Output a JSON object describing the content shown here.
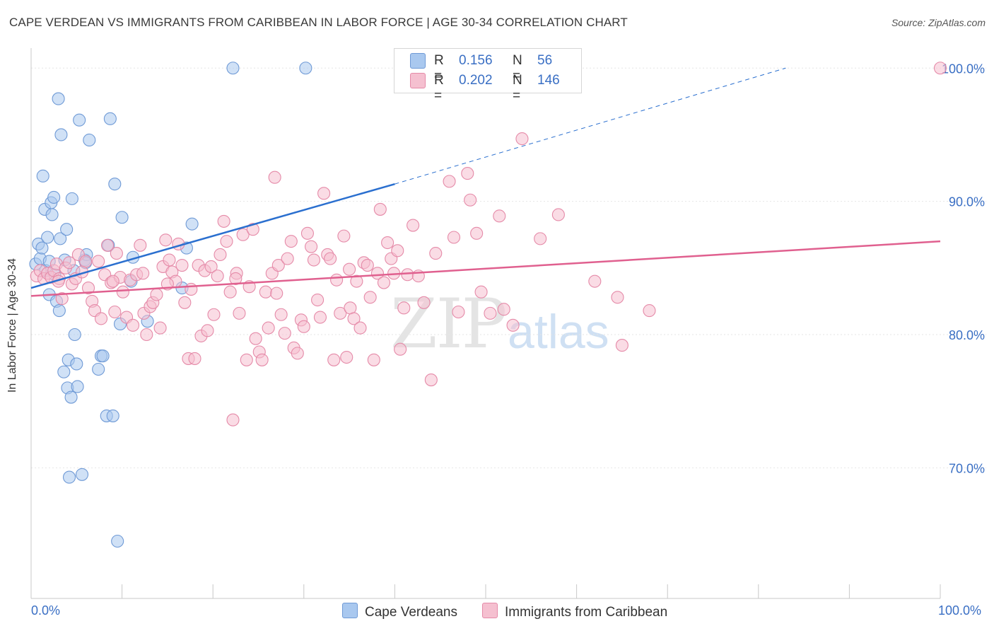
{
  "title": "CAPE VERDEAN VS IMMIGRANTS FROM CARIBBEAN IN LABOR FORCE | AGE 30-34 CORRELATION CHART",
  "source": "Source: ZipAtlas.com",
  "watermark": {
    "zip": "ZIP",
    "atlas": "atlas"
  },
  "legend": {
    "r_label": "R =",
    "n_label": "N =",
    "series": [
      {
        "name": "Cape Verdeans",
        "r": "0.156",
        "n": "56",
        "color": "#a9c8ef",
        "stroke": "#6f9ad6",
        "line": "#2a6fcf"
      },
      {
        "name": "Immigrants from Caribbean",
        "r": "0.202",
        "n": "146",
        "color": "#f5c0d0",
        "stroke": "#e58aa8",
        "line": "#e0608f"
      }
    ]
  },
  "chart_data": {
    "type": "scatter",
    "title": "CAPE VERDEAN VS IMMIGRANTS FROM CARIBBEAN IN LABOR FORCE | AGE 30-34 CORRELATION CHART",
    "xlabel": "",
    "ylabel": "In Labor Force | Age 30-34",
    "xlim": [
      0,
      100
    ],
    "ylim": [
      60.2,
      101.5
    ],
    "x_tick_labels": [
      "0.0%",
      "100.0%"
    ],
    "y_ticks": [
      70,
      80,
      90,
      100
    ],
    "y_tick_labels": [
      "70.0%",
      "80.0%",
      "90.0%",
      "100.0%"
    ],
    "grid": true,
    "series": [
      {
        "name": "Cape Verdeans",
        "trend": {
          "x0": 0,
          "y0": 83.5,
          "x1": 40,
          "y1": 91.3,
          "dash_x1": 83,
          "dash_y1": 100
        },
        "points": [
          [
            0.5,
            85.3
          ],
          [
            0.8,
            86.8
          ],
          [
            1.0,
            85.7
          ],
          [
            1.2,
            86.5
          ],
          [
            1.5,
            89.4
          ],
          [
            1.3,
            91.9
          ],
          [
            1.6,
            84.8
          ],
          [
            1.8,
            87.3
          ],
          [
            2.0,
            83.0
          ],
          [
            2.2,
            89.9
          ],
          [
            2.3,
            89.0
          ],
          [
            2.0,
            85.5
          ],
          [
            2.6,
            84.5
          ],
          [
            2.5,
            90.3
          ],
          [
            2.8,
            82.5
          ],
          [
            3.1,
            81.8
          ],
          [
            3.2,
            87.2
          ],
          [
            3.3,
            95.0
          ],
          [
            3.0,
            97.7
          ],
          [
            3.6,
            77.2
          ],
          [
            3.7,
            85.6
          ],
          [
            3.9,
            87.9
          ],
          [
            4.0,
            76.0
          ],
          [
            4.2,
            69.3
          ],
          [
            4.1,
            78.1
          ],
          [
            4.4,
            75.3
          ],
          [
            4.5,
            90.2
          ],
          [
            4.8,
            80.0
          ],
          [
            5.0,
            77.8
          ],
          [
            5.1,
            76.1
          ],
          [
            5.3,
            96.1
          ],
          [
            5.6,
            69.5
          ],
          [
            5.9,
            85.6
          ],
          [
            6.1,
            86.0
          ],
          [
            6.4,
            94.6
          ],
          [
            7.4,
            77.4
          ],
          [
            7.7,
            78.4
          ],
          [
            7.9,
            78.4
          ],
          [
            8.3,
            73.9
          ],
          [
            8.5,
            86.7
          ],
          [
            8.7,
            96.2
          ],
          [
            9.0,
            73.9
          ],
          [
            9.2,
            91.3
          ],
          [
            9.5,
            64.5
          ],
          [
            9.8,
            80.8
          ],
          [
            10.0,
            88.8
          ],
          [
            11.0,
            84.0
          ],
          [
            11.2,
            85.8
          ],
          [
            12.8,
            81.0
          ],
          [
            16.6,
            83.5
          ],
          [
            17.1,
            86.5
          ],
          [
            17.7,
            88.3
          ],
          [
            22.2,
            100.0
          ],
          [
            30.2,
            100.0
          ],
          [
            4.7,
            84.8
          ],
          [
            6.0,
            85.4
          ]
        ]
      },
      {
        "name": "Immigrants from Caribbean",
        "trend": {
          "x0": 0,
          "y0": 82.9,
          "x1": 100,
          "y1": 87.0
        },
        "points": [
          [
            0.6,
            84.4
          ],
          [
            1.0,
            84.8
          ],
          [
            1.4,
            84.2
          ],
          [
            1.8,
            84.6
          ],
          [
            2.2,
            84.3
          ],
          [
            2.5,
            84.8
          ],
          [
            2.8,
            85.3
          ],
          [
            3.1,
            84.2
          ],
          [
            3.4,
            82.7
          ],
          [
            3.8,
            85.0
          ],
          [
            4.2,
            85.4
          ],
          [
            4.5,
            83.8
          ],
          [
            4.9,
            84.2
          ],
          [
            5.2,
            86.0
          ],
          [
            5.6,
            84.7
          ],
          [
            6.0,
            85.5
          ],
          [
            6.3,
            83.5
          ],
          [
            6.7,
            82.5
          ],
          [
            7.0,
            81.8
          ],
          [
            7.4,
            85.5
          ],
          [
            7.7,
            81.2
          ],
          [
            8.1,
            84.5
          ],
          [
            8.4,
            86.7
          ],
          [
            8.8,
            83.9
          ],
          [
            9.2,
            81.7
          ],
          [
            9.4,
            86.1
          ],
          [
            9.8,
            84.3
          ],
          [
            10.1,
            83.2
          ],
          [
            10.5,
            81.3
          ],
          [
            10.9,
            84.1
          ],
          [
            11.2,
            80.7
          ],
          [
            11.6,
            84.5
          ],
          [
            12.0,
            86.7
          ],
          [
            12.4,
            81.6
          ],
          [
            12.7,
            80.0
          ],
          [
            13.1,
            82.1
          ],
          [
            13.4,
            82.4
          ],
          [
            13.8,
            83.0
          ],
          [
            14.2,
            80.5
          ],
          [
            14.5,
            85.1
          ],
          [
            14.8,
            87.1
          ],
          [
            15.2,
            85.6
          ],
          [
            15.5,
            84.7
          ],
          [
            15.9,
            84.0
          ],
          [
            16.2,
            86.8
          ],
          [
            16.6,
            85.2
          ],
          [
            16.9,
            82.4
          ],
          [
            17.3,
            78.2
          ],
          [
            17.6,
            83.4
          ],
          [
            18.0,
            78.2
          ],
          [
            18.4,
            85.2
          ],
          [
            18.7,
            79.9
          ],
          [
            19.1,
            84.8
          ],
          [
            19.4,
            80.3
          ],
          [
            19.8,
            85.1
          ],
          [
            20.1,
            81.5
          ],
          [
            20.5,
            84.4
          ],
          [
            20.8,
            86.0
          ],
          [
            21.2,
            88.5
          ],
          [
            21.5,
            87.0
          ],
          [
            21.9,
            83.2
          ],
          [
            22.2,
            73.6
          ],
          [
            22.6,
            84.6
          ],
          [
            22.9,
            81.6
          ],
          [
            23.3,
            87.5
          ],
          [
            23.7,
            78.1
          ],
          [
            24.0,
            83.6
          ],
          [
            24.4,
            87.9
          ],
          [
            24.7,
            79.7
          ],
          [
            25.1,
            78.7
          ],
          [
            25.4,
            78.1
          ],
          [
            25.8,
            83.2
          ],
          [
            26.1,
            80.5
          ],
          [
            26.5,
            84.6
          ],
          [
            26.8,
            91.8
          ],
          [
            27.2,
            85.2
          ],
          [
            27.5,
            81.5
          ],
          [
            27.9,
            80.1
          ],
          [
            28.2,
            85.7
          ],
          [
            28.6,
            87.0
          ],
          [
            28.9,
            79.0
          ],
          [
            29.3,
            78.6
          ],
          [
            29.7,
            81.1
          ],
          [
            30.0,
            80.6
          ],
          [
            30.4,
            87.6
          ],
          [
            30.8,
            86.6
          ],
          [
            31.1,
            85.6
          ],
          [
            31.5,
            82.6
          ],
          [
            31.8,
            81.3
          ],
          [
            32.2,
            90.6
          ],
          [
            32.6,
            86.0
          ],
          [
            32.9,
            85.7
          ],
          [
            33.3,
            78.1
          ],
          [
            33.6,
            84.1
          ],
          [
            34.0,
            81.6
          ],
          [
            34.4,
            87.4
          ],
          [
            34.7,
            78.3
          ],
          [
            35.1,
            82.0
          ],
          [
            35.5,
            81.2
          ],
          [
            35.8,
            84.0
          ],
          [
            36.2,
            80.5
          ],
          [
            36.6,
            85.4
          ],
          [
            37.0,
            85.2
          ],
          [
            37.3,
            82.8
          ],
          [
            37.7,
            78.1
          ],
          [
            38.1,
            84.6
          ],
          [
            38.4,
            89.4
          ],
          [
            38.8,
            83.9
          ],
          [
            39.2,
            86.9
          ],
          [
            39.6,
            85.7
          ],
          [
            39.9,
            84.6
          ],
          [
            40.3,
            86.3
          ],
          [
            40.6,
            78.9
          ],
          [
            41.0,
            82.0
          ],
          [
            41.4,
            84.5
          ],
          [
            42.0,
            88.2
          ],
          [
            42.6,
            84.4
          ],
          [
            43.2,
            82.4
          ],
          [
            44.0,
            76.6
          ],
          [
            46.0,
            91.5
          ],
          [
            46.5,
            87.3
          ],
          [
            47.0,
            81.7
          ],
          [
            48.0,
            92.1
          ],
          [
            48.3,
            90.1
          ],
          [
            49.0,
            87.6
          ],
          [
            49.5,
            83.2
          ],
          [
            50.5,
            81.6
          ],
          [
            51.5,
            88.9
          ],
          [
            52.0,
            81.9
          ],
          [
            53.0,
            80.7
          ],
          [
            54.0,
            94.7
          ],
          [
            56.0,
            87.2
          ],
          [
            58.0,
            89.0
          ],
          [
            62.0,
            84.0
          ],
          [
            64.5,
            82.8
          ],
          [
            65.0,
            79.2
          ],
          [
            68.0,
            81.8
          ],
          [
            100.0,
            100.0
          ],
          [
            15.0,
            83.8
          ],
          [
            12.3,
            84.6
          ],
          [
            22.5,
            84.2
          ],
          [
            35.0,
            84.9
          ],
          [
            9.0,
            84.0
          ],
          [
            3.0,
            84.0
          ],
          [
            44.5,
            86.1
          ],
          [
            27.0,
            83.1
          ]
        ]
      }
    ]
  }
}
